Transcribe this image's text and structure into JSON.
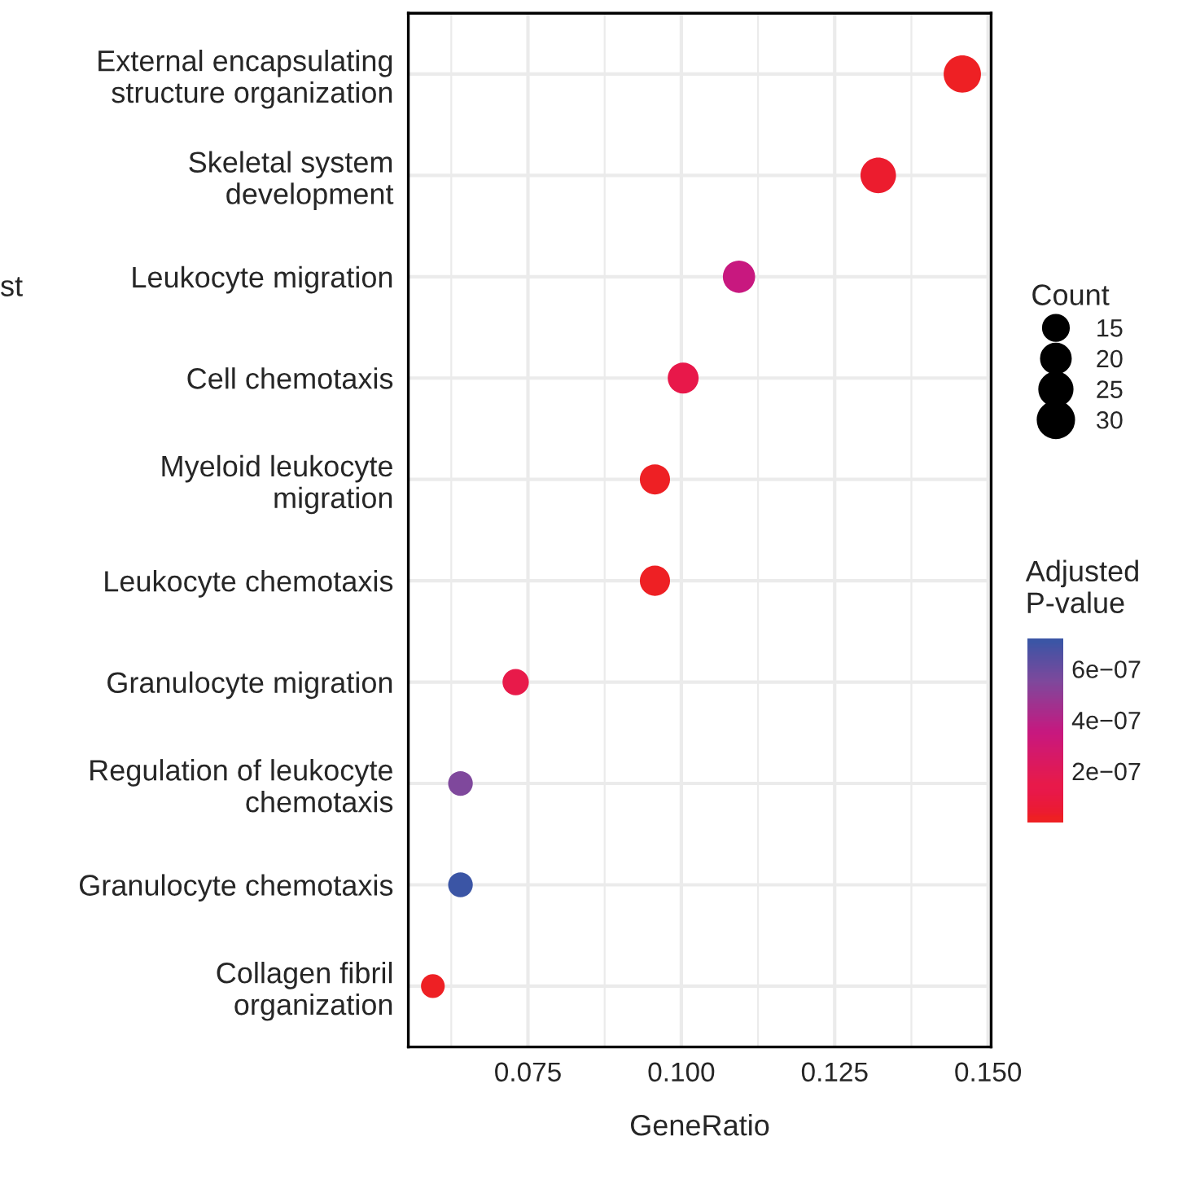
{
  "chart_data": {
    "type": "bubble",
    "orientation": "horizontal",
    "xlabel": "GeneRatio",
    "legend_title": "Count",
    "clabel": "Adjusted\nP-value",
    "categories": [
      "External encapsulating\nstructure organization",
      "Skeletal system\ndevelopment",
      "Leukocyte migration",
      "Cell chemotaxis",
      "Myeloid leukocyte\nmigration",
      "Leukocyte chemotaxis",
      "Granulocyte migration",
      "Regulation of leukocyte\nchemotaxis",
      "Granulocyte chemotaxis",
      "Collagen fibril\norganization"
    ],
    "values": [
      0.1458,
      0.1321,
      0.1094,
      0.1003,
      0.0957,
      0.0957,
      0.073,
      0.064,
      0.064,
      0.0595
    ],
    "sizes": [
      32,
      29,
      24,
      22,
      21,
      21,
      16,
      14,
      14,
      13
    ],
    "size_legend": [
      15,
      20,
      25,
      30
    ],
    "cvalues": [
      2e-08,
      3e-08,
      3.5e-07,
      1.2e-07,
      2e-08,
      2e-08,
      1.5e-07,
      5.5e-07,
      7.1e-07,
      2e-08
    ],
    "colors": [
      "#ee2024",
      "#ec1c2e",
      "#c8187f",
      "#e8184a",
      "#ee2024",
      "#ee2024",
      "#e81a4a",
      "#7f489c",
      "#3b55a5",
      "#ee2024"
    ],
    "clim": [
      0,
      7.2e-07
    ],
    "cticks": [
      {
        "value": 2e-07,
        "label": "2e−07"
      },
      {
        "value": 4e-07,
        "label": "4e−07"
      },
      {
        "value": 6e-07,
        "label": "6e−07"
      }
    ],
    "xlim": [
      0.0555,
      0.1505
    ],
    "xticks": [
      {
        "value": 0.075,
        "label": "0.075"
      },
      {
        "value": 0.1,
        "label": "0.100"
      },
      {
        "value": 0.125,
        "label": "0.125"
      },
      {
        "value": 0.15,
        "label": "0.150"
      }
    ],
    "grid": true,
    "annotations": [
      "st"
    ]
  }
}
